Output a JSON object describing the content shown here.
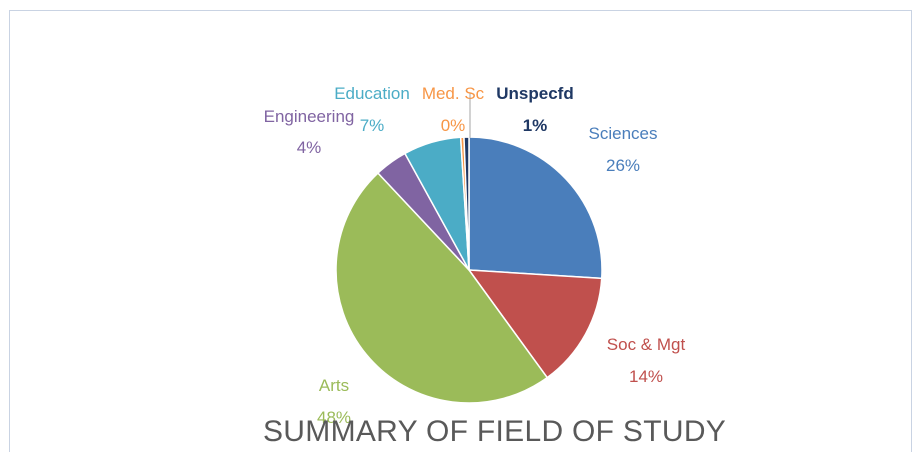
{
  "chart_data": {
    "type": "pie",
    "title": "SUMMARY OF FIELD OF STUDY",
    "slices": [
      {
        "label": "Sciences",
        "pct_label": "26%",
        "value": 26,
        "color": "#4a7ebb"
      },
      {
        "label": "Soc & Mgt",
        "pct_label": "14%",
        "value": 14,
        "color": "#c0504d"
      },
      {
        "label": "Arts",
        "pct_label": "48%",
        "value": 48,
        "color": "#9bbb59"
      },
      {
        "label": "Engineering",
        "pct_label": "4%",
        "value": 4,
        "color": "#8064a2"
      },
      {
        "label": "Education",
        "pct_label": "7%",
        "value": 7,
        "color": "#4bacc6"
      },
      {
        "label": "Med. Sc",
        "pct_label": "0%",
        "value": 0.4,
        "color": "#f79646"
      },
      {
        "label": "Unspecfd",
        "pct_label": "1%",
        "value": 0.6,
        "color": "#1f3864"
      }
    ]
  }
}
